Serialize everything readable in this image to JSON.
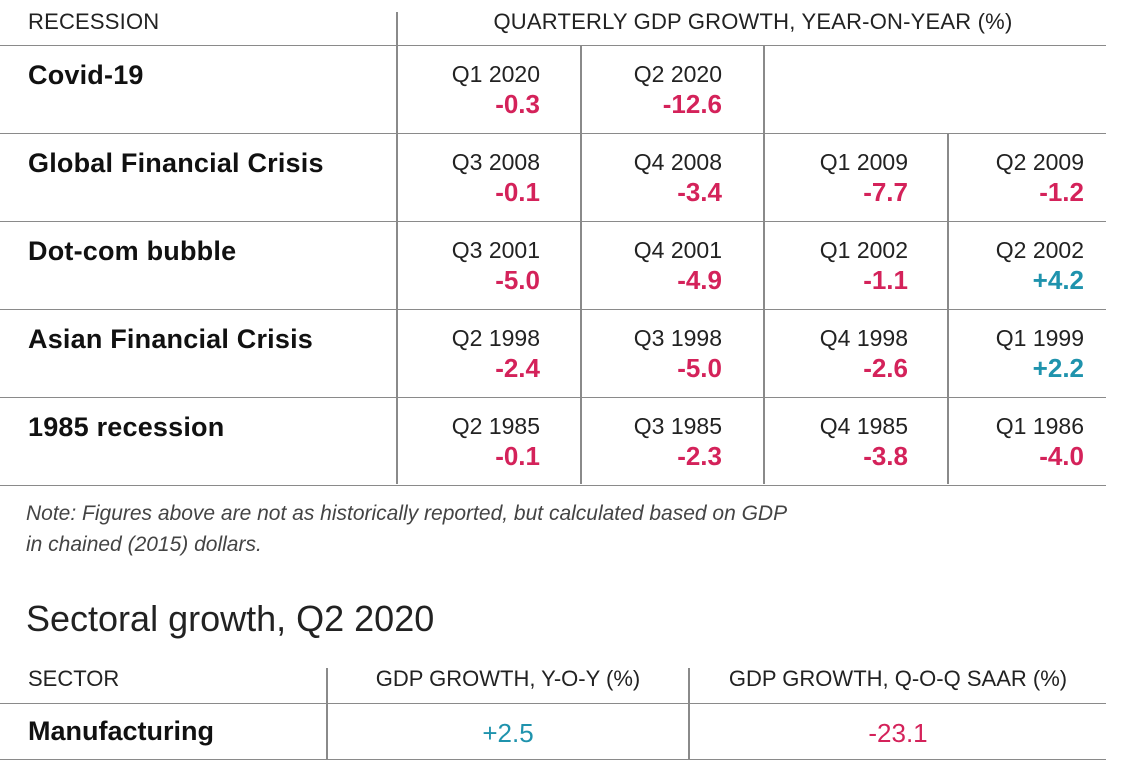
{
  "table1": {
    "header_left": "RECESSION",
    "header_right": "QUARTERLY GDP GROWTH, YEAR-ON-YEAR (%)",
    "rows": [
      {
        "name": "Covid-19",
        "cells": [
          {
            "q": "Q1 2020",
            "v": "-0.3",
            "sign": "neg"
          },
          {
            "q": "Q2 2020",
            "v": "-12.6",
            "sign": "neg"
          }
        ]
      },
      {
        "name": "Global Financial Crisis",
        "cells": [
          {
            "q": "Q3 2008",
            "v": "-0.1",
            "sign": "neg"
          },
          {
            "q": "Q4 2008",
            "v": "-3.4",
            "sign": "neg"
          },
          {
            "q": "Q1 2009",
            "v": "-7.7",
            "sign": "neg"
          },
          {
            "q": "Q2 2009",
            "v": "-1.2",
            "sign": "neg"
          }
        ]
      },
      {
        "name": "Dot-com bubble",
        "cells": [
          {
            "q": "Q3 2001",
            "v": "-5.0",
            "sign": "neg"
          },
          {
            "q": "Q4 2001",
            "v": "-4.9",
            "sign": "neg"
          },
          {
            "q": "Q1 2002",
            "v": "-1.1",
            "sign": "neg"
          },
          {
            "q": "Q2 2002",
            "v": "+4.2",
            "sign": "pos"
          }
        ]
      },
      {
        "name": "Asian Financial Crisis",
        "cells": [
          {
            "q": "Q2 1998",
            "v": "-2.4",
            "sign": "neg"
          },
          {
            "q": "Q3 1998",
            "v": "-5.0",
            "sign": "neg"
          },
          {
            "q": "Q4 1998",
            "v": "-2.6",
            "sign": "neg"
          },
          {
            "q": "Q1 1999",
            "v": "+2.2",
            "sign": "pos"
          }
        ]
      },
      {
        "name": "1985 recession",
        "cells": [
          {
            "q": "Q2 1985",
            "v": "-0.1",
            "sign": "neg"
          },
          {
            "q": "Q3 1985",
            "v": "-2.3",
            "sign": "neg"
          },
          {
            "q": "Q4 1985",
            "v": "-3.8",
            "sign": "neg"
          },
          {
            "q": "Q1 1986",
            "v": "-4.0",
            "sign": "neg"
          }
        ]
      }
    ]
  },
  "note": {
    "line1": "Note: Figures above are not as historically reported, but calculated based on GDP",
    "line2": "in chained (2015) dollars."
  },
  "table2": {
    "title": "Sectoral growth, Q2 2020",
    "header_sector": "SECTOR",
    "header_yoy": "GDP GROWTH, Y-O-Y (%)",
    "header_qoq": "GDP GROWTH, Q-O-Q SAAR (%)",
    "rows": [
      {
        "name": "Manufacturing",
        "yoy": "+2.5",
        "yoy_sign": "pos",
        "qoq": "-23.1",
        "qoq_sign": "neg"
      }
    ]
  },
  "colors": {
    "negative": "#d4225a",
    "positive": "#1f93ad",
    "rule": "#8a8a8a"
  }
}
